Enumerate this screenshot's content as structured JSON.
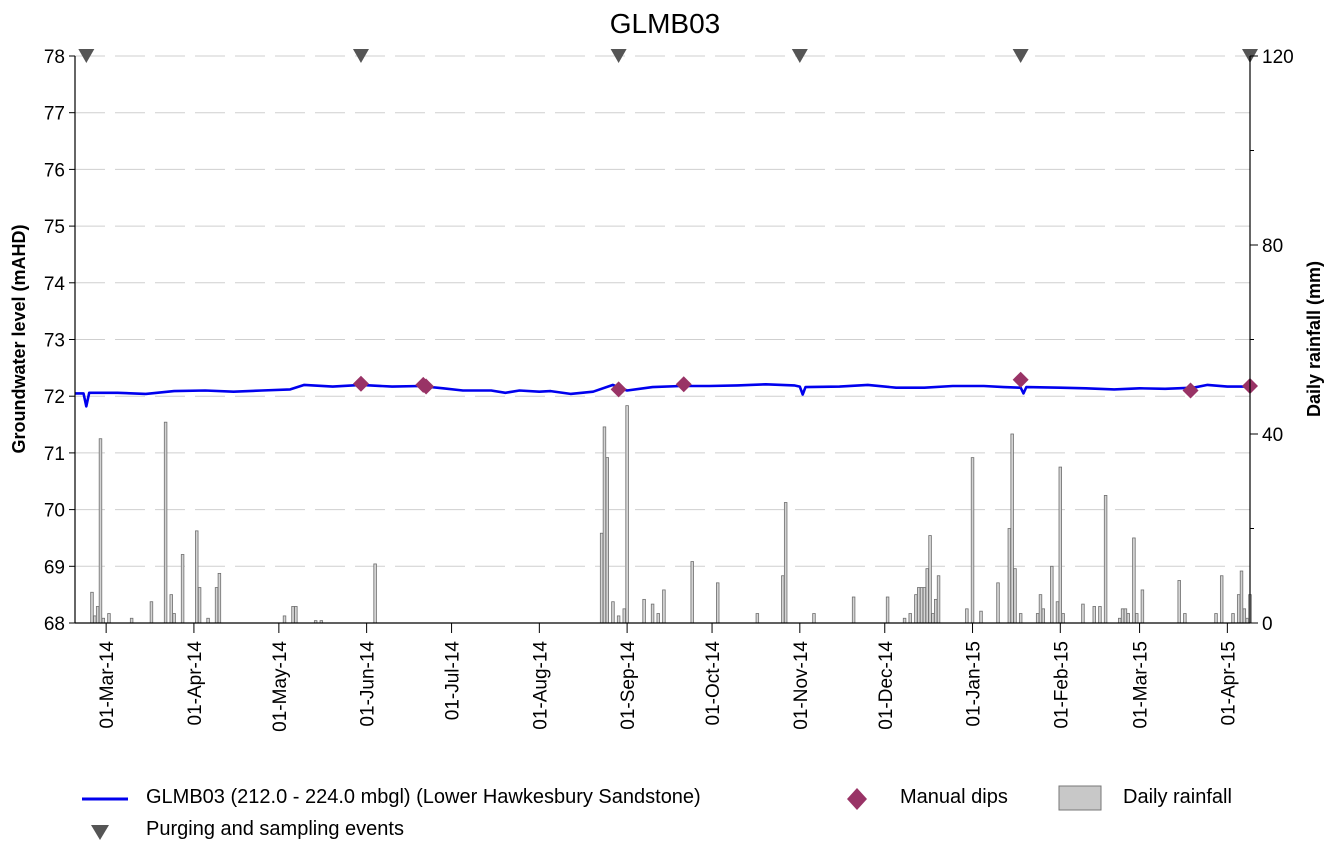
{
  "chart_data": {
    "type": "line",
    "title": "GLMB03",
    "y_left": {
      "label": "Groundwater level (mAHD)",
      "min": 68,
      "max": 78,
      "ticks": [
        68,
        69,
        70,
        71,
        72,
        73,
        74,
        75,
        76,
        77,
        78
      ]
    },
    "y_right": {
      "label": "Daily rainfall (mm)",
      "min": 0,
      "max": 120,
      "ticks": [
        0,
        40,
        80,
        120
      ]
    },
    "x": {
      "start": "2014-02-18",
      "end": "2015-04-09",
      "tick_dates": [
        "2014-03-01",
        "2014-04-01",
        "2014-05-01",
        "2014-06-01",
        "2014-07-01",
        "2014-08-01",
        "2014-09-01",
        "2014-10-01",
        "2014-11-01",
        "2014-12-01",
        "2015-01-01",
        "2015-02-01",
        "2015-03-01",
        "2015-04-01"
      ],
      "tick_labels": [
        "01-Mar-14",
        "01-Apr-14",
        "01-May-14",
        "01-Jun-14",
        "01-Jul-14",
        "01-Aug-14",
        "01-Sep-14",
        "01-Oct-14",
        "01-Nov-14",
        "01-Dec-14",
        "01-Jan-15",
        "01-Feb-15",
        "01-Mar-15",
        "01-Apr-15"
      ]
    },
    "grid": "horizontal-dashed",
    "series": [
      {
        "name": "GLMB03 (212.0 - 224.0 mbgl) (Lower Hawkesbury Sandstone)",
        "kind": "line",
        "axis": "left",
        "color": "#0000ee",
        "points": [
          [
            "2014-02-18",
            72.05
          ],
          [
            "2014-02-21",
            72.05
          ],
          [
            "2014-02-22",
            71.82
          ],
          [
            "2014-02-23",
            72.06
          ],
          [
            "2014-03-05",
            72.06
          ],
          [
            "2014-03-15",
            72.04
          ],
          [
            "2014-03-25",
            72.09
          ],
          [
            "2014-04-05",
            72.1
          ],
          [
            "2014-04-15",
            72.08
          ],
          [
            "2014-04-25",
            72.1
          ],
          [
            "2014-05-05",
            72.12
          ],
          [
            "2014-05-10",
            72.2
          ],
          [
            "2014-05-20",
            72.17
          ],
          [
            "2014-05-30",
            72.2
          ],
          [
            "2014-06-10",
            72.17
          ],
          [
            "2014-06-20",
            72.18
          ],
          [
            "2014-06-28",
            72.14
          ],
          [
            "2014-07-05",
            72.1
          ],
          [
            "2014-07-15",
            72.1
          ],
          [
            "2014-07-20",
            72.06
          ],
          [
            "2014-07-25",
            72.1
          ],
          [
            "2014-08-01",
            72.08
          ],
          [
            "2014-08-05",
            72.09
          ],
          [
            "2014-08-12",
            72.04
          ],
          [
            "2014-08-20",
            72.08
          ],
          [
            "2014-08-27",
            72.2
          ],
          [
            "2014-09-01",
            72.1
          ],
          [
            "2014-09-10",
            72.16
          ],
          [
            "2014-09-20",
            72.18
          ],
          [
            "2014-09-30",
            72.18
          ],
          [
            "2014-10-10",
            72.19
          ],
          [
            "2014-10-20",
            72.21
          ],
          [
            "2014-10-30",
            72.19
          ],
          [
            "2014-11-01",
            72.17
          ],
          [
            "2014-11-02",
            72.03
          ],
          [
            "2014-11-03",
            72.16
          ],
          [
            "2014-11-15",
            72.17
          ],
          [
            "2014-11-25",
            72.2
          ],
          [
            "2014-12-05",
            72.15
          ],
          [
            "2014-12-15",
            72.15
          ],
          [
            "2014-12-25",
            72.18
          ],
          [
            "2015-01-05",
            72.18
          ],
          [
            "2015-01-12",
            72.16
          ],
          [
            "2015-01-18",
            72.15
          ],
          [
            "2015-01-19",
            72.05
          ],
          [
            "2015-01-20",
            72.16
          ],
          [
            "2015-02-01",
            72.15
          ],
          [
            "2015-02-10",
            72.14
          ],
          [
            "2015-02-20",
            72.12
          ],
          [
            "2015-03-01",
            72.14
          ],
          [
            "2015-03-10",
            72.13
          ],
          [
            "2015-03-20",
            72.15
          ],
          [
            "2015-03-25",
            72.2
          ],
          [
            "2015-04-01",
            72.17
          ],
          [
            "2015-04-09",
            72.17
          ]
        ]
      },
      {
        "name": "Manual dips",
        "kind": "marker",
        "marker": "diamond",
        "axis": "left",
        "color": "#993366",
        "points": [
          [
            "2014-05-30",
            72.22
          ],
          [
            "2014-06-21",
            72.2
          ],
          [
            "2014-06-22",
            72.17
          ],
          [
            "2014-08-29",
            72.12
          ],
          [
            "2014-09-21",
            72.21
          ],
          [
            "2015-01-18",
            72.29
          ],
          [
            "2015-03-19",
            72.1
          ],
          [
            "2015-04-09",
            72.18
          ]
        ]
      },
      {
        "name": "Daily rainfall",
        "kind": "bar",
        "axis": "right",
        "color": "#c0c0c0",
        "points": [
          [
            "2014-02-24",
            6.5
          ],
          [
            "2014-02-25",
            1.5
          ],
          [
            "2014-02-26",
            3.5
          ],
          [
            "2014-02-27",
            39
          ],
          [
            "2014-02-28",
            1
          ],
          [
            "2014-03-02",
            2
          ],
          [
            "2014-03-10",
            1
          ],
          [
            "2014-03-17",
            4.5
          ],
          [
            "2014-03-22",
            42.5
          ],
          [
            "2014-03-24",
            6
          ],
          [
            "2014-03-25",
            2
          ],
          [
            "2014-03-28",
            14.5
          ],
          [
            "2014-04-02",
            19.5
          ],
          [
            "2014-04-03",
            7.5
          ],
          [
            "2014-04-06",
            1
          ],
          [
            "2014-04-09",
            7.5
          ],
          [
            "2014-04-10",
            10.5
          ],
          [
            "2014-05-03",
            1.5
          ],
          [
            "2014-05-06",
            3.5
          ],
          [
            "2014-05-07",
            3.5
          ],
          [
            "2014-05-14",
            0.5
          ],
          [
            "2014-05-16",
            0.5
          ],
          [
            "2014-06-04",
            12.5
          ],
          [
            "2014-08-23",
            19
          ],
          [
            "2014-08-24",
            41.5
          ],
          [
            "2014-08-25",
            35
          ],
          [
            "2014-08-27",
            4.5
          ],
          [
            "2014-08-29",
            1.5
          ],
          [
            "2014-08-31",
            3
          ],
          [
            "2014-09-01",
            46
          ],
          [
            "2014-09-07",
            5
          ],
          [
            "2014-09-10",
            4
          ],
          [
            "2014-09-12",
            2
          ],
          [
            "2014-09-14",
            7
          ],
          [
            "2014-09-24",
            13
          ],
          [
            "2014-10-03",
            8.5
          ],
          [
            "2014-10-17",
            2
          ],
          [
            "2014-10-26",
            10
          ],
          [
            "2014-10-27",
            25.5
          ],
          [
            "2014-11-06",
            2
          ],
          [
            "2014-11-20",
            5.5
          ],
          [
            "2014-12-02",
            5.5
          ],
          [
            "2014-12-08",
            1
          ],
          [
            "2014-12-10",
            2
          ],
          [
            "2014-12-12",
            6
          ],
          [
            "2014-12-13",
            7.5
          ],
          [
            "2014-12-14",
            7.5
          ],
          [
            "2014-12-15",
            7.5
          ],
          [
            "2014-12-16",
            11.5
          ],
          [
            "2014-12-17",
            18.5
          ],
          [
            "2014-12-18",
            2
          ],
          [
            "2014-12-19",
            5
          ],
          [
            "2014-12-20",
            10
          ],
          [
            "2014-12-30",
            3
          ],
          [
            "2015-01-01",
            35
          ],
          [
            "2015-01-04",
            2.5
          ],
          [
            "2015-01-10",
            8.5
          ],
          [
            "2015-01-14",
            20
          ],
          [
            "2015-01-15",
            40
          ],
          [
            "2015-01-16",
            11.5
          ],
          [
            "2015-01-18",
            2
          ],
          [
            "2015-01-24",
            2
          ],
          [
            "2015-01-25",
            6
          ],
          [
            "2015-01-26",
            3
          ],
          [
            "2015-01-29",
            12
          ],
          [
            "2015-01-31",
            4.5
          ],
          [
            "2015-02-01",
            33
          ],
          [
            "2015-02-02",
            2
          ],
          [
            "2015-02-09",
            4
          ],
          [
            "2015-02-13",
            3.5
          ],
          [
            "2015-02-15",
            3.5
          ],
          [
            "2015-02-17",
            27
          ],
          [
            "2015-02-22",
            1
          ],
          [
            "2015-02-23",
            3
          ],
          [
            "2015-02-24",
            3
          ],
          [
            "2015-02-25",
            2
          ],
          [
            "2015-02-27",
            18
          ],
          [
            "2015-02-28",
            2
          ],
          [
            "2015-03-02",
            7
          ],
          [
            "2015-03-15",
            9
          ],
          [
            "2015-03-17",
            2
          ],
          [
            "2015-03-28",
            2
          ],
          [
            "2015-03-30",
            10
          ],
          [
            "2015-04-03",
            2
          ],
          [
            "2015-04-05",
            6
          ],
          [
            "2015-04-06",
            11
          ],
          [
            "2015-04-07",
            3
          ],
          [
            "2015-04-08",
            1
          ],
          [
            "2015-04-09",
            6
          ]
        ]
      },
      {
        "name": "Purging and sampling events",
        "kind": "marker",
        "marker": "triangle-down",
        "axis": "left",
        "color": "#555555",
        "points": [
          [
            "2014-02-22",
            78
          ],
          [
            "2014-05-30",
            78
          ],
          [
            "2014-08-29",
            78
          ],
          [
            "2014-11-01",
            78
          ],
          [
            "2015-01-18",
            78
          ],
          [
            "2015-04-09",
            78
          ]
        ]
      }
    ]
  }
}
